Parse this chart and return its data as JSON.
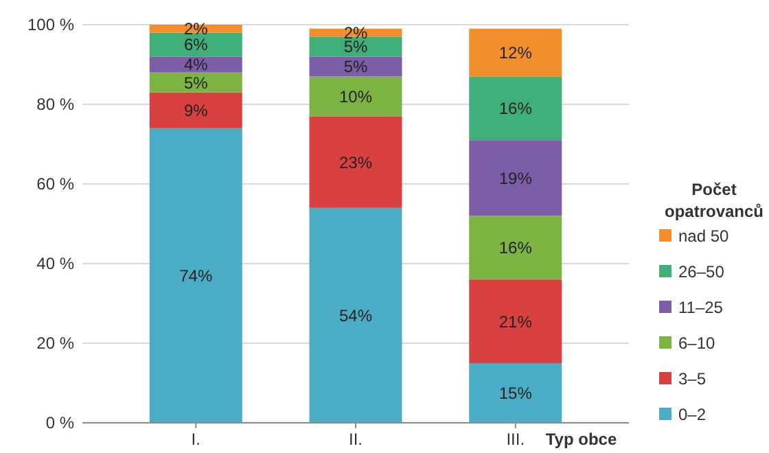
{
  "chart_data": {
    "type": "bar",
    "stacked": true,
    "categories": [
      "I.",
      "II.",
      "III."
    ],
    "xlabel": "Typ obce",
    "legend_title": "Počet opatrovanců",
    "legend": "right",
    "grid": "y",
    "ylim": [
      0,
      100
    ],
    "yticks": [
      {
        "value": 0,
        "label": "0 %"
      },
      {
        "value": 20,
        "label": "20 %"
      },
      {
        "value": 40,
        "label": "40 %"
      },
      {
        "value": 60,
        "label": "60 %"
      },
      {
        "value": 80,
        "label": "80 %"
      },
      {
        "value": 100,
        "label": "100 %"
      }
    ],
    "series": [
      {
        "name": "0–2",
        "color": "#4bacc6",
        "values": [
          74,
          54,
          15
        ],
        "value_labels": [
          "74%",
          "54%",
          "15%"
        ]
      },
      {
        "name": "3–5",
        "color": "#d94040",
        "values": [
          9,
          23,
          21
        ],
        "value_labels": [
          "9%",
          "23%",
          "21%"
        ]
      },
      {
        "name": "6–10",
        "color": "#7cb342",
        "values": [
          5,
          10,
          16
        ],
        "value_labels": [
          "5%",
          "10%",
          "16%"
        ]
      },
      {
        "name": "11–25",
        "color": "#7b5ea7",
        "values": [
          4,
          5,
          19
        ],
        "value_labels": [
          "4%",
          "5%",
          "19%"
        ]
      },
      {
        "name": "26–50",
        "color": "#3fae78",
        "values": [
          6,
          5,
          16
        ],
        "value_labels": [
          "6%",
          "5%",
          "16%"
        ]
      },
      {
        "name": "nad 50",
        "color": "#f28e2b",
        "values": [
          2,
          2,
          12
        ],
        "value_labels": [
          "2%",
          "2%",
          "12%"
        ]
      }
    ]
  }
}
